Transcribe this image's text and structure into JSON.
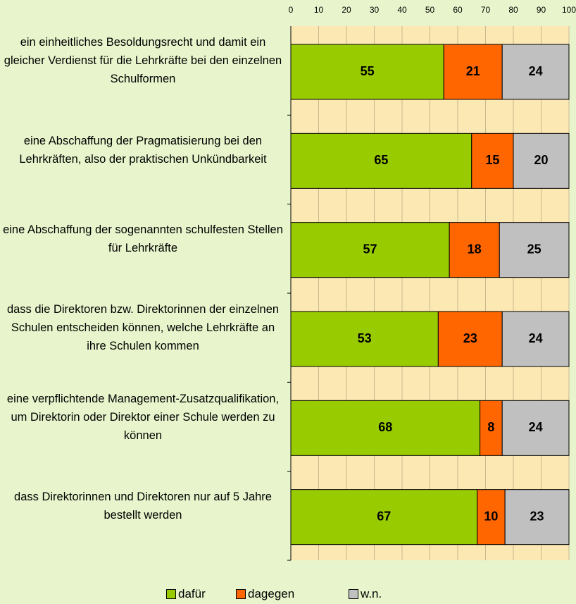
{
  "chart_data": {
    "type": "stacked-barh",
    "categories": [
      "ein einheitliches Besoldungsrecht und damit ein gleicher Verdienst für die Lehrkräfte bei den einzelnen Schulformen",
      "eine Abschaffung der Pragmatisierung bei den Lehrkräften, also der praktischen Unkündbarkeit",
      "eine Abschaffung der sogenannten schulfesten Stellen für Lehrkräfte",
      "dass die Direktoren bzw. Direktorinnen der einzelnen Schulen entscheiden können, welche Lehrkräfte an ihre Schulen kommen",
      "eine verpflichtende Management-Zusatzqualifikation, um Direktorin oder Direktor einer Schule werden zu können",
      "dass Direktorinnen und Direktoren nur auf 5 Jahre bestellt werden"
    ],
    "series": [
      {
        "name": "dafür",
        "color": "#99cc00",
        "values": [
          55,
          65,
          57,
          53,
          68,
          67
        ]
      },
      {
        "name": "dagegen",
        "color": "#ff6600",
        "values": [
          21,
          15,
          18,
          23,
          8,
          10
        ]
      },
      {
        "name": "w.n.",
        "color": "#c0c0c0",
        "values": [
          24,
          20,
          25,
          24,
          24,
          23
        ]
      }
    ],
    "xlim": [
      0,
      100
    ],
    "xticks": [
      0,
      10,
      20,
      30,
      40,
      50,
      60,
      70,
      80,
      90,
      100
    ],
    "grid": true,
    "legend": "bottom"
  }
}
